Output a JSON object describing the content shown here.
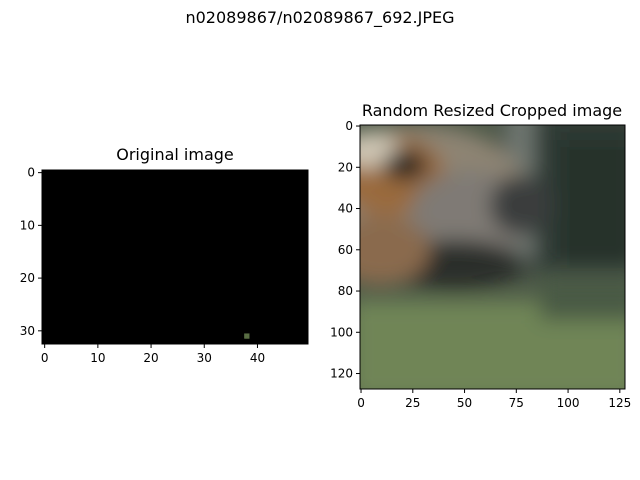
{
  "figure": {
    "suptitle": "n02089867/n02089867_692.JPEG"
  },
  "chart_data": [
    {
      "type": "image",
      "title": "Original image",
      "xlabel": "",
      "ylabel": "",
      "xlim": [
        -0.5,
        49.5
      ],
      "ylim": [
        32.5,
        -0.5
      ],
      "xticks": [
        0,
        10,
        20,
        30,
        40
      ],
      "yticks": [
        0,
        10,
        20,
        30
      ],
      "image_shape": [
        33,
        50
      ],
      "grid": false
    },
    {
      "type": "image",
      "title": "Random Resized Cropped image",
      "xlabel": "",
      "ylabel": "",
      "xlim": [
        -0.5,
        127.5
      ],
      "ylim": [
        127.5,
        -0.5
      ],
      "xticks": [
        0,
        25,
        50,
        75,
        100,
        125
      ],
      "yticks": [
        0,
        20,
        40,
        60,
        80,
        100,
        120
      ],
      "image_shape": [
        128,
        128
      ],
      "grid": false
    }
  ]
}
